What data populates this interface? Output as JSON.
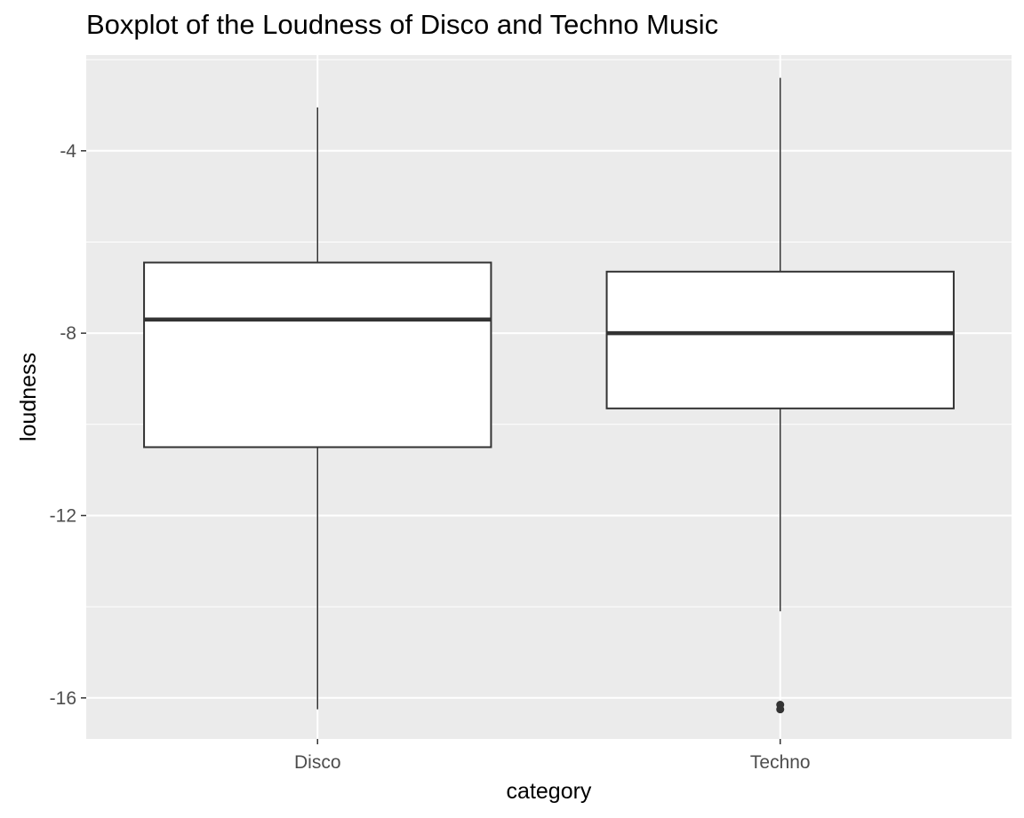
{
  "chart_data": {
    "type": "boxplot",
    "title": "Boxplot of the Loudness of Disco and Techno Music",
    "xlabel": "category",
    "ylabel": "loudness",
    "categories": [
      "Disco",
      "Techno"
    ],
    "ylim": [
      -16.9,
      -1.9
    ],
    "y_ticks": [
      -16,
      -12,
      -8,
      -4
    ],
    "grid": true,
    "boxes": [
      {
        "category": "Disco",
        "whisker_low": -16.25,
        "q1": -10.5,
        "median": -7.7,
        "q3": -6.45,
        "whisker_high": -3.05,
        "outliers": []
      },
      {
        "category": "Techno",
        "whisker_low": -14.1,
        "q1": -9.65,
        "median": -8.0,
        "q3": -6.65,
        "whisker_high": -2.4,
        "outliers": [
          -16.15,
          -16.25
        ]
      }
    ],
    "colors": {
      "panel": "#ebebeb",
      "grid": "#ffffff",
      "box_fill": "#ffffff",
      "box_line": "#333333",
      "outlier": "#333333"
    }
  }
}
